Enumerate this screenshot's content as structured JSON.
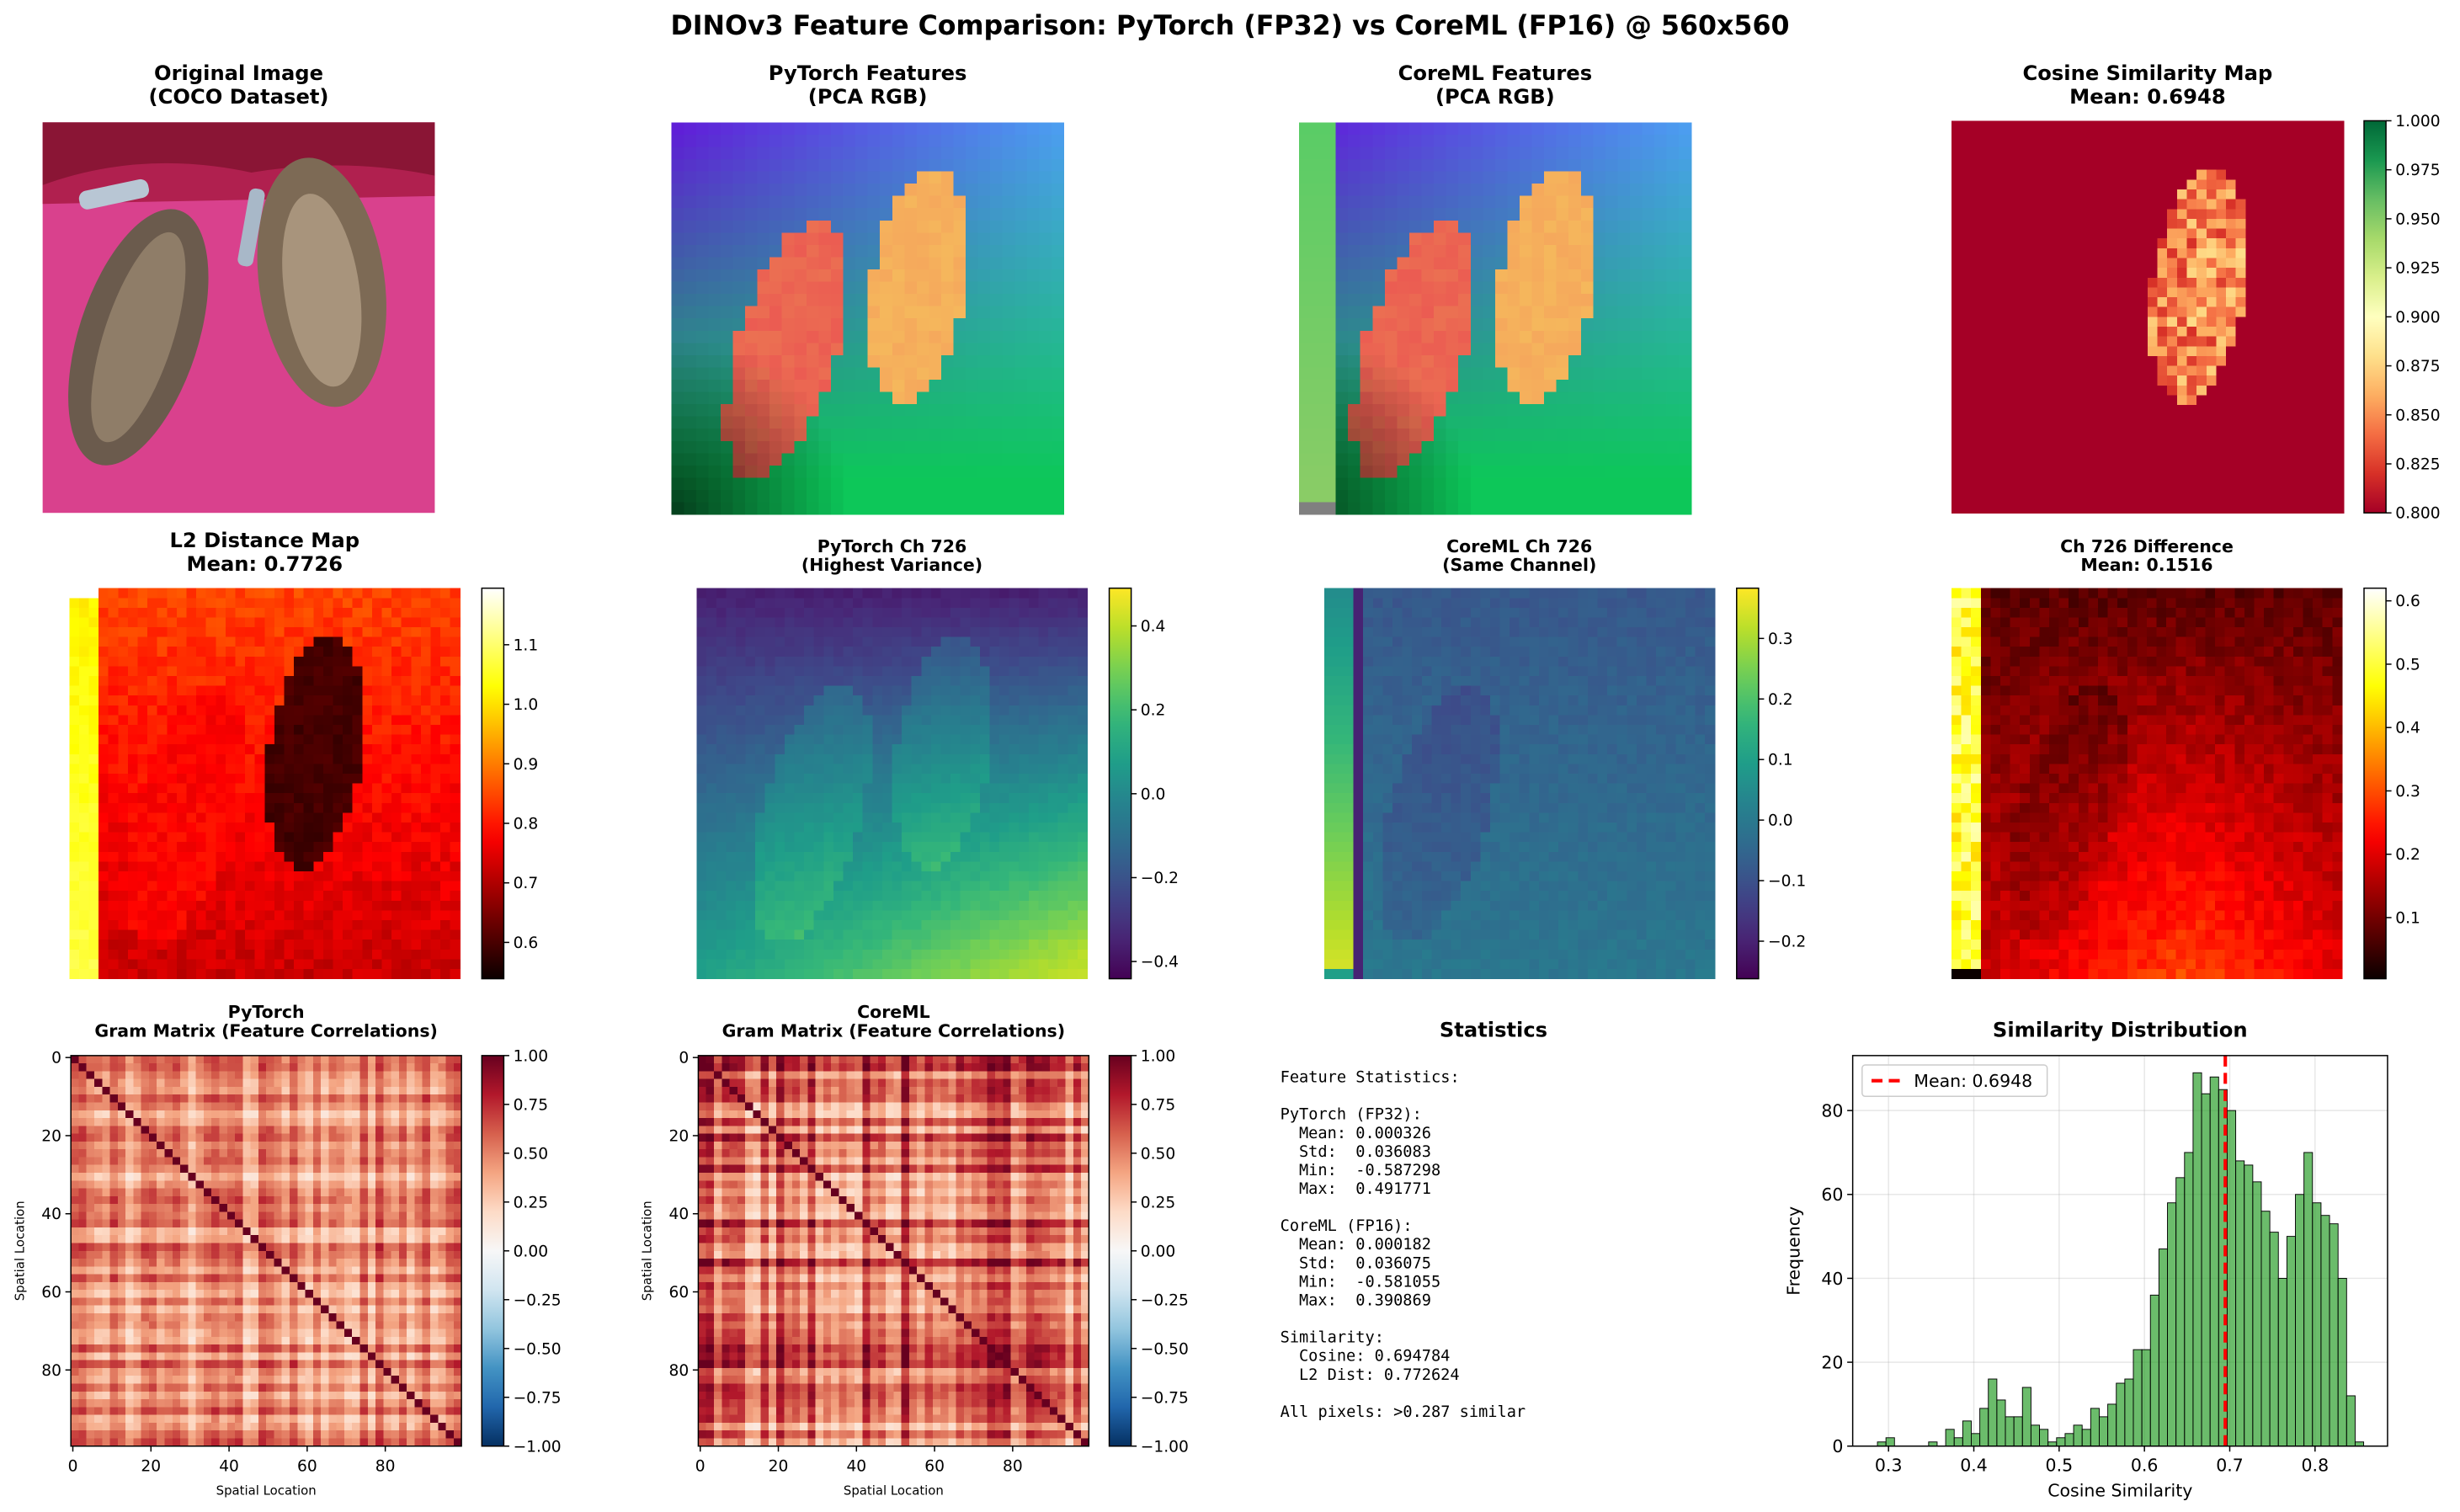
{
  "title": "DINOv3 Feature Comparison: PyTorch (FP32) vs CoreML (FP16) @ 560x560",
  "chart_data": [
    {
      "type": "image",
      "title": "Original Image",
      "subtitle": "(COCO Dataset)"
    },
    {
      "type": "image",
      "title": "PyTorch Features",
      "subtitle": "(PCA RGB)"
    },
    {
      "type": "image",
      "title": "CoreML Features",
      "subtitle": "(PCA RGB)"
    },
    {
      "type": "heatmap",
      "title": "Cosine Similarity Map",
      "subtitle": "Mean: 0.6948",
      "colormap": "RdYlGn",
      "clim": [
        0.8,
        1.0
      ],
      "cticks": [
        {
          "value": 0.8,
          "label": "0.800"
        },
        {
          "value": 0.825,
          "label": "0.825"
        },
        {
          "value": 0.85,
          "label": "0.850"
        },
        {
          "value": 0.875,
          "label": "0.875"
        },
        {
          "value": 0.9,
          "label": "0.900"
        },
        {
          "value": 0.925,
          "label": "0.925"
        },
        {
          "value": 0.95,
          "label": "0.950"
        },
        {
          "value": 0.975,
          "label": "0.975"
        },
        {
          "value": 1.0,
          "label": "1.000"
        }
      ]
    },
    {
      "type": "heatmap",
      "title": "L2 Distance Map",
      "subtitle": "Mean: 0.7726",
      "colormap": "hot",
      "clim": [
        0.539,
        1.195
      ],
      "cticks": [
        0.6,
        0.7,
        0.8,
        0.9,
        {
          "value": 1.0,
          "label": "1.0"
        },
        1.1
      ]
    },
    {
      "type": "heatmap",
      "title": "PyTorch Ch 726",
      "subtitle": "(Highest Variance)",
      "colormap": "viridis",
      "clim": [
        -0.441,
        0.49
      ],
      "cticks": [
        {
          "value": -0.4,
          "label": "−0.4"
        },
        {
          "value": -0.2,
          "label": "−0.2"
        },
        {
          "value": 0.0,
          "label": "0.0"
        },
        0.2,
        0.4
      ]
    },
    {
      "type": "heatmap",
      "title": "CoreML Ch 726",
      "subtitle": "(Same Channel)",
      "colormap": "viridis",
      "clim": [
        -0.262,
        0.383
      ],
      "cticks": [
        {
          "value": -0.2,
          "label": "−0.2"
        },
        {
          "value": -0.1,
          "label": "−0.1"
        },
        {
          "value": 0.0,
          "label": "0.0"
        },
        0.1,
        0.2,
        0.3
      ]
    },
    {
      "type": "heatmap",
      "title": "Ch 726 Difference",
      "subtitle": "Mean: 0.1516",
      "colormap": "hot",
      "clim": [
        0.0035,
        0.62
      ],
      "cticks": [
        0.1,
        0.2,
        0.3,
        0.4,
        0.5,
        0.6
      ]
    },
    {
      "type": "heatmap",
      "title": "PyTorch",
      "subtitle": "Gram Matrix (Feature Correlations)",
      "colormap": "RdBu_r",
      "clim": [
        -1,
        1
      ],
      "cticks": [
        {
          "value": -1,
          "label": "−1.00"
        },
        {
          "value": -0.75,
          "label": "−0.75"
        },
        {
          "value": -0.5,
          "label": "−0.50"
        },
        {
          "value": -0.25,
          "label": "−0.25"
        },
        {
          "value": 0,
          "label": "0.00"
        },
        {
          "value": 0.25,
          "label": "0.25"
        },
        {
          "value": 0.5,
          "label": "0.50"
        },
        {
          "value": 0.75,
          "label": "0.75"
        },
        {
          "value": 1,
          "label": "1.00"
        }
      ],
      "xlabel": "Spatial Location",
      "ylabel": "Spatial Location",
      "xlim": [
        -0.5,
        99.5
      ],
      "ylim": [
        99.5,
        -0.5
      ],
      "xticks": [
        0,
        20,
        40,
        60,
        80
      ],
      "yticks": [
        0,
        20,
        40,
        60,
        80
      ]
    },
    {
      "type": "heatmap",
      "title": "CoreML",
      "subtitle": "Gram Matrix (Feature Correlations)",
      "colormap": "RdBu_r",
      "clim": [
        -1,
        1
      ],
      "cticks": [
        {
          "value": -1,
          "label": "−1.00"
        },
        {
          "value": -0.75,
          "label": "−0.75"
        },
        {
          "value": -0.5,
          "label": "−0.50"
        },
        {
          "value": -0.25,
          "label": "−0.25"
        },
        {
          "value": 0,
          "label": "0.00"
        },
        {
          "value": 0.25,
          "label": "0.25"
        },
        {
          "value": 0.5,
          "label": "0.50"
        },
        {
          "value": 0.75,
          "label": "0.75"
        },
        {
          "value": 1,
          "label": "1.00"
        }
      ],
      "xlabel": "Spatial Location",
      "ylabel": "Spatial Location",
      "xlim": [
        -0.5,
        99.5
      ],
      "ylim": [
        99.5,
        -0.5
      ],
      "xticks": [
        0,
        20,
        40,
        60,
        80
      ],
      "yticks": [
        0,
        20,
        40,
        60,
        80
      ]
    },
    {
      "type": "text",
      "title": "Statistics",
      "heading": "Feature Statistics:",
      "groups": [
        {
          "name": "PyTorch (FP32):",
          "lines": [
            "Mean: 0.000326",
            "Std:  0.036083",
            "Min:  -0.587298",
            "Max:  0.491771"
          ]
        },
        {
          "name": "CoreML (FP16):",
          "lines": [
            "Mean: 0.000182",
            "Std:  0.036075",
            "Min:  -0.581055",
            "Max:  0.390869"
          ]
        },
        {
          "name": "Similarity:",
          "lines": [
            "Cosine: 0.694784",
            "L2 Dist: 0.772624"
          ]
        }
      ],
      "footer": "All pixels: >0.287 similar"
    },
    {
      "type": "histogram",
      "title": "Similarity Distribution",
      "xlabel": "Cosine Similarity",
      "ylabel": "Frequency",
      "bins": [
        0.287,
        0.297,
        0.307,
        0.317,
        0.327,
        0.337,
        0.347,
        0.357,
        0.367,
        0.377,
        0.387,
        0.397,
        0.407,
        0.417,
        0.427,
        0.437,
        0.447,
        0.457,
        0.467,
        0.477,
        0.487,
        0.497,
        0.507,
        0.517,
        0.527,
        0.537,
        0.547,
        0.557,
        0.567,
        0.577,
        0.587,
        0.597,
        0.607,
        0.617,
        0.627,
        0.637,
        0.647,
        0.657,
        0.667,
        0.677,
        0.687,
        0.697,
        0.707,
        0.717,
        0.727,
        0.737,
        0.747,
        0.757,
        0.767,
        0.777,
        0.787,
        0.797,
        0.807,
        0.817,
        0.827,
        0.837,
        0.847,
        0.857
      ],
      "counts": [
        1,
        2,
        0,
        0,
        0,
        0,
        1,
        0,
        4,
        2,
        6,
        3,
        9,
        16,
        11,
        7,
        7,
        14,
        5,
        4,
        1,
        2,
        3,
        5,
        4,
        9,
        7,
        10,
        15,
        16,
        23,
        23,
        36,
        47,
        58,
        64,
        70,
        89,
        84,
        88,
        85,
        80,
        68,
        67,
        63,
        56,
        51,
        40,
        50,
        60,
        70,
        58,
        55,
        53,
        40,
        12,
        1
      ],
      "color": "#2ca02c",
      "xlim": [
        0.258,
        0.885
      ],
      "ylim": [
        0,
        93.1
      ],
      "xticks": [
        0.3,
        0.4,
        0.5,
        0.6,
        0.7,
        0.8
      ],
      "yticks": [
        0,
        20,
        40,
        60,
        80
      ],
      "grid": true,
      "legend": "upper left",
      "mean_line": {
        "value": 0.6948,
        "label": "Mean: 0.6948",
        "color": "#ff0000"
      }
    }
  ]
}
